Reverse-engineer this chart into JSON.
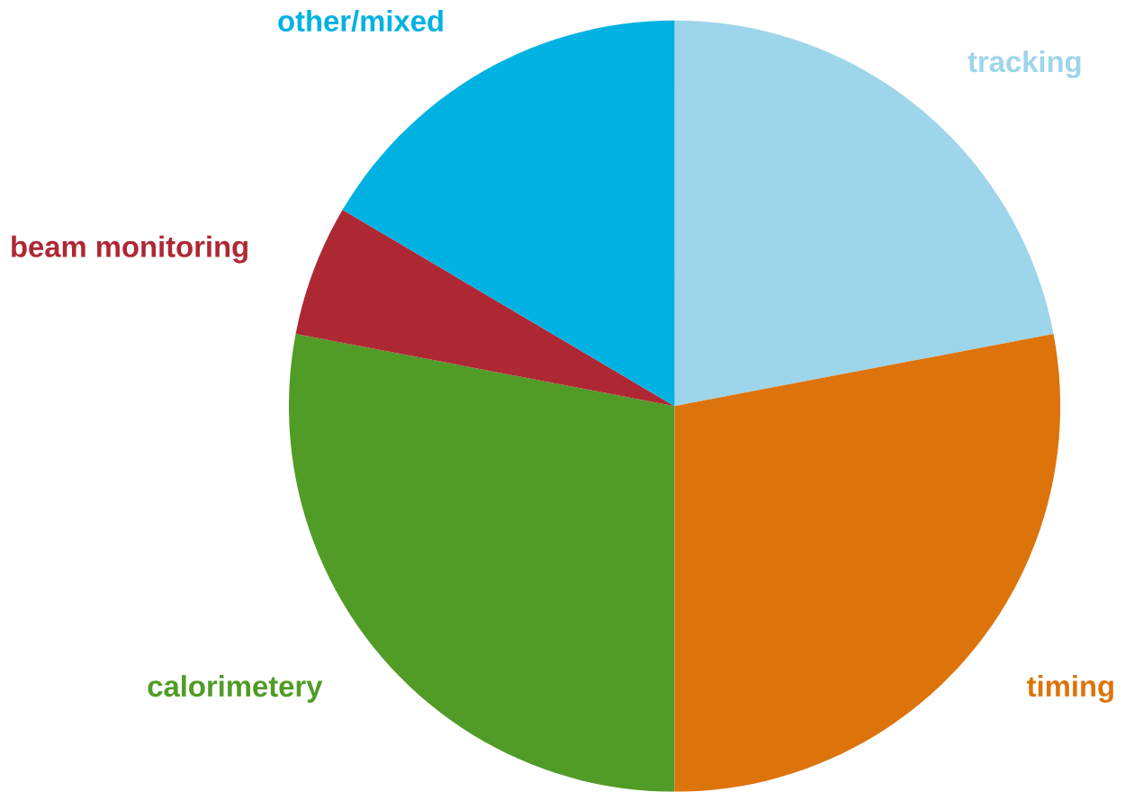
{
  "chart_data": {
    "type": "pie",
    "categories": [
      "tracking",
      "timing",
      "calorimetery",
      "beam monitoring",
      "other/mixed"
    ],
    "values": [
      22,
      28,
      28,
      5.5,
      16.5
    ],
    "colors": [
      "#9dd5ea",
      "#dd730b",
      "#519b27",
      "#ae2834",
      "#00b2e2"
    ]
  }
}
